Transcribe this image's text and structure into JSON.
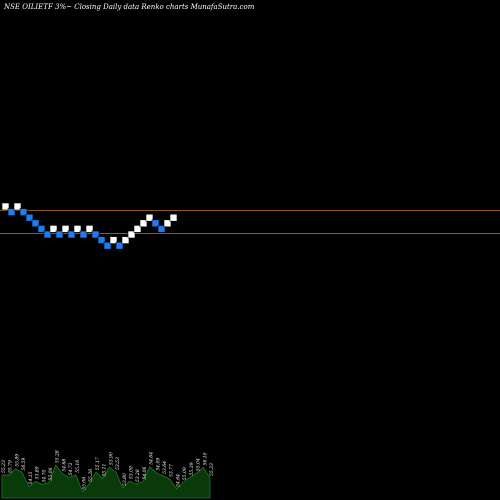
{
  "chart_data": {
    "type": "renko",
    "title": "NSE OILIETF 3%~  Closing Daily data  Renko  charts MunafaSutra.com",
    "bricks": [
      {
        "dir": "up"
      },
      {
        "dir": "down"
      },
      {
        "dir": "up"
      },
      {
        "dir": "down"
      },
      {
        "dir": "down"
      },
      {
        "dir": "down"
      },
      {
        "dir": "down"
      },
      {
        "dir": "down"
      },
      {
        "dir": "up"
      },
      {
        "dir": "down"
      },
      {
        "dir": "up"
      },
      {
        "dir": "down"
      },
      {
        "dir": "up"
      },
      {
        "dir": "down"
      },
      {
        "dir": "up"
      },
      {
        "dir": "down"
      },
      {
        "dir": "down"
      },
      {
        "dir": "down"
      },
      {
        "dir": "up"
      },
      {
        "dir": "down"
      },
      {
        "dir": "up"
      },
      {
        "dir": "up"
      },
      {
        "dir": "up"
      },
      {
        "dir": "up"
      },
      {
        "dir": "up"
      },
      {
        "dir": "down"
      },
      {
        "dir": "down"
      },
      {
        "dir": "up"
      },
      {
        "dir": "up"
      }
    ],
    "reference_lines": [
      "upper",
      "lower"
    ],
    "volume": [
      {
        "label": "55.23"
      },
      {
        "label": "55.79"
      },
      {
        "label": "55.89"
      },
      {
        "label": "56.59"
      },
      {
        "label": "54.15"
      },
      {
        "label": "53.89"
      },
      {
        "label": "54.70"
      },
      {
        "label": "55.06"
      },
      {
        "label": "55.28"
      },
      {
        "label": "54.68"
      },
      {
        "label": "54.72"
      },
      {
        "label": "55.16"
      },
      {
        "label": "55.06"
      },
      {
        "label": "55.26"
      },
      {
        "label": "55.17"
      },
      {
        "label": "55.11"
      },
      {
        "label": "53.90"
      },
      {
        "label": "53.53"
      },
      {
        "label": "53.80"
      },
      {
        "label": "53.09"
      },
      {
        "label": "53.28"
      },
      {
        "label": "54.06"
      },
      {
        "label": "54.64"
      },
      {
        "label": "54.09"
      },
      {
        "label": "53.64"
      },
      {
        "label": "53.77"
      },
      {
        "label": "54.64"
      },
      {
        "label": "55.09"
      },
      {
        "label": "55.39"
      },
      {
        "label": "55.04"
      },
      {
        "label": "56.10"
      },
      {
        "label": "55.23"
      }
    ],
    "colors": {
      "background": "#000000",
      "up_brick": "#ffffff",
      "down_brick": "#1e7bf0",
      "reference_line": "#c0781e",
      "volume_area": "#0a3a0a",
      "volume_line": "#1f7a1f"
    }
  }
}
